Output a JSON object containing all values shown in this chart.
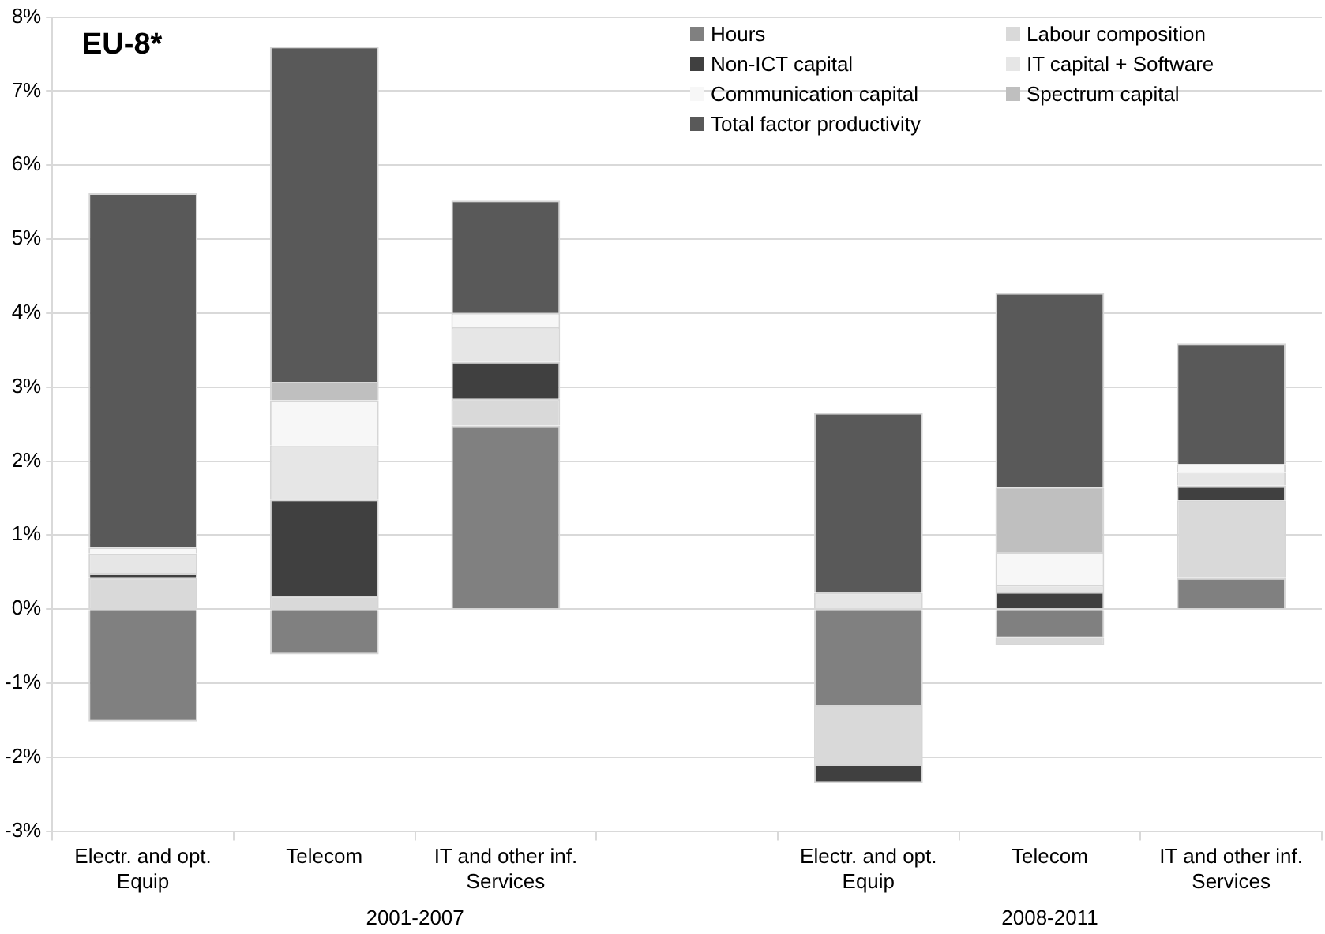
{
  "chart_data": {
    "type": "bar",
    "title": "EU-8*",
    "stacked": true,
    "categories": [
      "Electr. and opt. Equip",
      "Telecom",
      "IT and other inf. Services",
      null,
      "Electr. and opt. Equip",
      "Telecom",
      "IT and other inf. Services"
    ],
    "series": [
      {
        "name": "Hours",
        "color": "#808080",
        "values": [
          -1.52,
          -0.61,
          2.48,
          null,
          -1.32,
          -0.39,
          0.42
        ]
      },
      {
        "name": "Labour composition",
        "color": "#d9d9d9",
        "values": [
          0.42,
          0.18,
          0.36,
          null,
          -0.8,
          -0.1,
          1.05
        ]
      },
      {
        "name": "Non-ICT capital",
        "color": "#404040",
        "values": [
          0.06,
          1.3,
          0.5,
          null,
          -0.23,
          0.23,
          0.2
        ]
      },
      {
        "name": "IT capital + Software",
        "color": "#e6e6e6",
        "values": [
          0.27,
          0.73,
          0.47,
          null,
          0.22,
          0.1,
          0.18
        ]
      },
      {
        "name": "Communication capital",
        "color": "#f7f7f7",
        "values": [
          0.08,
          0.61,
          0.19,
          null,
          null,
          0.44,
          0.11
        ]
      },
      {
        "name": "Spectrum capital",
        "color": "#bfbfbf",
        "values": [
          0,
          0.25,
          0,
          null,
          0,
          0.88,
          0
        ]
      },
      {
        "name": "Total factor productivity",
        "color": "#595959",
        "values": [
          4.79,
          4.53,
          1.52,
          null,
          2.43,
          2.62,
          1.63
        ]
      }
    ],
    "ylim": [
      -3,
      8
    ],
    "yticks": [
      {
        "value": -3,
        "label": "-3%"
      },
      {
        "value": -2,
        "label": "-2%"
      },
      {
        "value": -1,
        "label": "-1%"
      },
      {
        "value": 0,
        "label": "0%"
      },
      {
        "value": 1,
        "label": "1%"
      },
      {
        "value": 2,
        "label": "2%"
      },
      {
        "value": 3,
        "label": "3%"
      },
      {
        "value": 4,
        "label": "4%"
      },
      {
        "value": 5,
        "label": "5%"
      },
      {
        "value": 6,
        "label": "6%"
      },
      {
        "value": 7,
        "label": "7%"
      },
      {
        "value": 8,
        "label": "8%"
      }
    ],
    "grid": "y",
    "legend": "top right",
    "annotations": [
      "2001-2007",
      "2008-2011"
    ]
  }
}
